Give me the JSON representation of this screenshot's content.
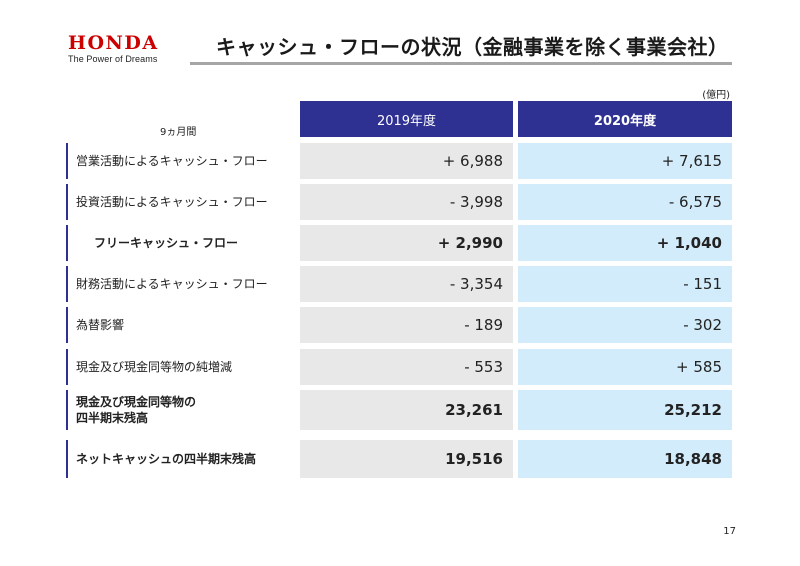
{
  "brand": {
    "name": "HONDA",
    "tagline": "The Power of Dreams"
  },
  "page": {
    "title": "キャッシュ・フローの状況（金融事業を除く事業会社）",
    "number": "17"
  },
  "table": {
    "unit": "(億円)",
    "period": "9ヵ月間",
    "columns": [
      "2019年度",
      "2020年度"
    ],
    "rows": [
      {
        "label": "営業活動によるキャッシュ・フロー",
        "v2019": "+ 6,988",
        "v2020": "+ 7,615"
      },
      {
        "label": "投資活動によるキャッシュ・フロー",
        "v2019": "- 3,998",
        "v2020": "- 6,575"
      },
      {
        "label": "フリーキャッシュ・フロー",
        "v2019": "+ 2,990",
        "v2020": "+ 1,040"
      },
      {
        "label": "財務活動によるキャッシュ・フロー",
        "v2019": "- 3,354",
        "v2020": "- 151"
      },
      {
        "label": "為替影響",
        "v2019": "- 189",
        "v2020": "- 302"
      },
      {
        "label": "現金及び現金同等物の純増減",
        "v2019": "- 553",
        "v2020": "+ 585"
      },
      {
        "label_line1": "現金及び現金同等物の",
        "label_line2": "四半期末残高",
        "v2019": "23,261",
        "v2020": "25,212"
      },
      {
        "label": "ネットキャッシュの四半期末残高",
        "v2019": "19,516",
        "v2020": "18,848"
      }
    ]
  }
}
